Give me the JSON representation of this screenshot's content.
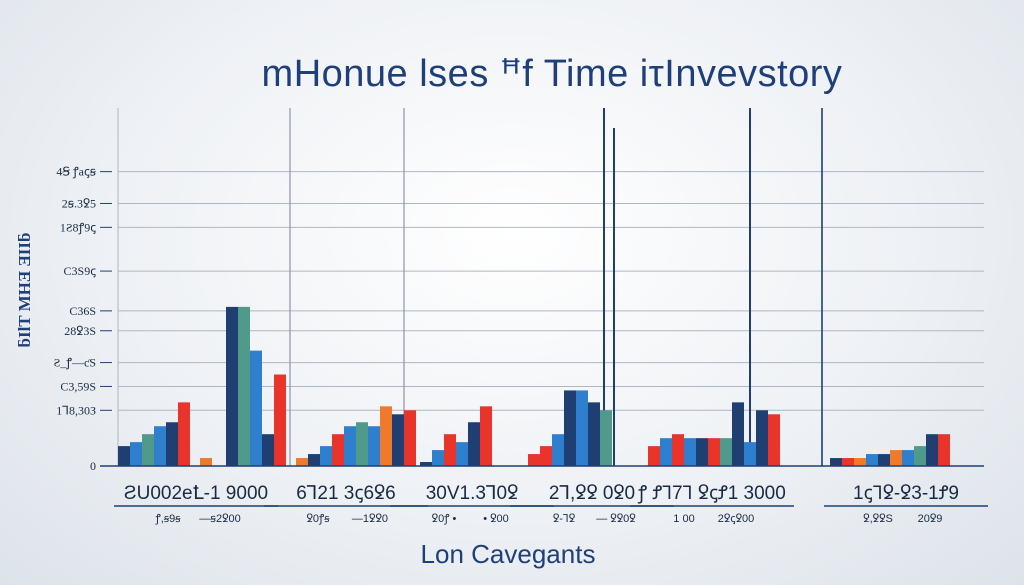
{
  "colors": {
    "navy": "#1f3f73",
    "blue": "#2f7fcf",
    "red": "#e8342a",
    "orange": "#f07a2c",
    "teal": "#4f9a8a",
    "grid": "#aeb7c4",
    "text": "#1f3f7a"
  },
  "chart_data": {
    "type": "bar",
    "title": "mHonue lses ꟸf Time  iτInvevstory",
    "xlabel": "Lon Cavegants",
    "ylabel": "ƃIlT MHƎ ƎIIƃ",
    "ylim": [
      0,
      9
    ],
    "grid": true,
    "y_ticks": [
      {
        "label": "0",
        "value": 0
      },
      {
        "label": "1Ꞁ8,30З",
        "value": 1.4
      },
      {
        "label": "C3,59S",
        "value": 2.0
      },
      {
        "label": "Ƨ_ꝭ—ƈS",
        "value": 2.6
      },
      {
        "label": "28ꝿ3S",
        "value": 3.4
      },
      {
        "label": "C36S",
        "value": 3.9
      },
      {
        "label": "C3S9ꞔ",
        "value": 4.9
      },
      {
        "label": "1Ƨ8ꝭ9ꞔ",
        "value": 6.0
      },
      {
        "label": "2ꞩ.3ꝿ5",
        "value": 6.6
      },
      {
        "label": "4Ꞩ ꝭaꞔꞩ",
        "value": 7.4
      }
    ],
    "groups": [
      {
        "label": "ƧU002eꝈ-1  9000",
        "sublabels": [
          "ꝭ,ꞩ9ꞩ",
          "—ꞩ2ꝿ00"
        ],
        "bars": [
          {
            "color": "navy",
            "value": 0.5
          },
          {
            "color": "blue",
            "value": 0.6
          },
          {
            "color": "teal",
            "value": 0.8
          },
          {
            "color": "blue",
            "value": 1.0
          },
          {
            "color": "navy",
            "value": 1.1
          },
          {
            "color": "red",
            "value": 1.6
          },
          {
            "color": "orange",
            "value": 0.2
          },
          {
            "color": "navy",
            "value": 4.0
          },
          {
            "color": "teal",
            "value": 4.0
          },
          {
            "color": "blue",
            "value": 2.9
          },
          {
            "color": "navy",
            "value": 0.8
          },
          {
            "color": "red",
            "value": 2.3
          }
        ]
      },
      {
        "label": "6Ꞁ21 3ꞔ6ꝿ6",
        "sublabels": [
          "ꝿ0ꝭꞩ",
          "—1ꝿꝿ0"
        ],
        "bars": [
          {
            "color": "orange",
            "value": 0.2
          },
          {
            "color": "navy",
            "value": 0.3
          },
          {
            "color": "blue",
            "value": 0.5
          },
          {
            "color": "red",
            "value": 0.8
          },
          {
            "color": "blue",
            "value": 1.0
          },
          {
            "color": "teal",
            "value": 1.1
          },
          {
            "color": "blue",
            "value": 1.0
          },
          {
            "color": "orange",
            "value": 1.5
          },
          {
            "color": "navy",
            "value": 1.3
          },
          {
            "color": "red",
            "value": 1.4
          }
        ]
      },
      {
        "label": "30V1.3Ꞁ0ꝿ",
        "sublabels": [
          "ꝿ0ꝭ •",
          "• ꝿ00"
        ],
        "bars": [
          {
            "color": "navy",
            "value": 0.1
          },
          {
            "color": "blue",
            "value": 0.4
          },
          {
            "color": "red",
            "value": 0.8
          },
          {
            "color": "blue",
            "value": 0.6
          },
          {
            "color": "navy",
            "value": 1.1
          },
          {
            "color": "red",
            "value": 1.5
          }
        ]
      },
      {
        "label": "2Ꞁ,ꝿꝿ  0ꝿ0",
        "sublabels": [
          "ꝿ-Ꞁꝿ",
          "— ꝿꝿ0ꝿ"
        ],
        "bars": [
          {
            "color": "red",
            "value": 0.3
          },
          {
            "color": "red",
            "value": 0.5
          },
          {
            "color": "blue",
            "value": 0.8
          },
          {
            "color": "navy",
            "value": 1.9
          },
          {
            "color": "blue",
            "value": 1.9
          },
          {
            "color": "navy",
            "value": 1.6
          },
          {
            "color": "teal",
            "value": 1.4
          }
        ]
      },
      {
        "label": "ꝭ ꝬꞀ7Ꞁ ꝿꞔꝬ1  3000",
        "sublabels": [
          "1 00",
          "2ꝿꞔꝿ00"
        ],
        "bars": [
          {
            "color": "red",
            "value": 0.5
          },
          {
            "color": "blue",
            "value": 0.7
          },
          {
            "color": "red",
            "value": 0.8
          },
          {
            "color": "blue",
            "value": 0.7
          },
          {
            "color": "navy",
            "value": 0.7
          },
          {
            "color": "red",
            "value": 0.7
          },
          {
            "color": "teal",
            "value": 0.7
          },
          {
            "color": "navy",
            "value": 1.6
          },
          {
            "color": "blue",
            "value": 0.6
          },
          {
            "color": "navy",
            "value": 1.4
          },
          {
            "color": "red",
            "value": 1.3
          }
        ]
      },
      {
        "label": "1ꞔꞀꝿ-ꝿ3-1Ꝭ9",
        "sublabels": [
          "ꝿ,ꝿꝿS",
          "20ꝿ9"
        ],
        "bars": [
          {
            "color": "navy",
            "value": 0.2
          },
          {
            "color": "red",
            "value": 0.2
          },
          {
            "color": "orange",
            "value": 0.2
          },
          {
            "color": "blue",
            "value": 0.3
          },
          {
            "color": "navy",
            "value": 0.3
          },
          {
            "color": "orange",
            "value": 0.4
          },
          {
            "color": "blue",
            "value": 0.4
          },
          {
            "color": "teal",
            "value": 0.5
          },
          {
            "color": "navy",
            "value": 0.8
          },
          {
            "color": "red",
            "value": 0.8
          }
        ]
      }
    ]
  }
}
